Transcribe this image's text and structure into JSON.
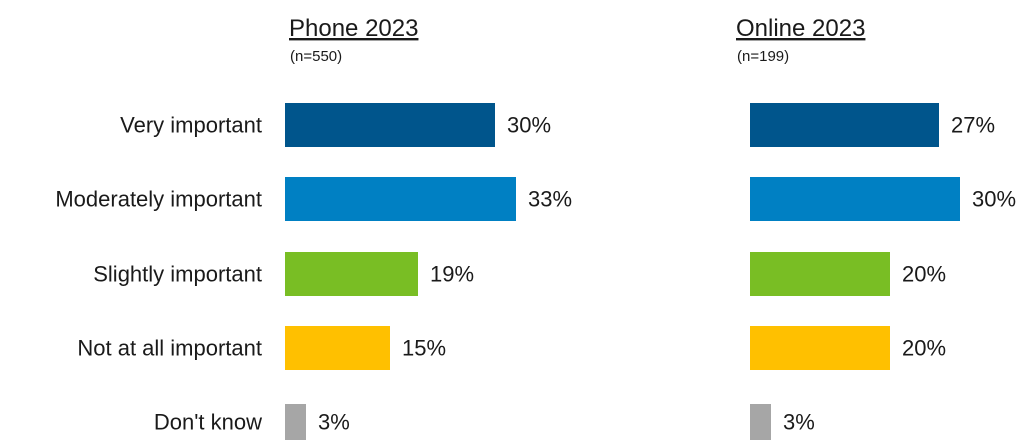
{
  "chart_data": {
    "type": "bar",
    "orientation": "horizontal",
    "categories": [
      "Very important",
      "Moderately important",
      "Slightly important",
      "Not at all important",
      "Don't know"
    ],
    "colors": [
      "#00558c",
      "#0080c3",
      "#79be24",
      "#ffc000",
      "#a6a6a6"
    ],
    "panels": [
      {
        "title": "Phone 2023",
        "subtitle": "(n=550)",
        "values": [
          30,
          33,
          19,
          15,
          3
        ],
        "labels": [
          "30%",
          "33%",
          "19%",
          "15%",
          "3%"
        ]
      },
      {
        "title": "Online 2023",
        "subtitle": "(n=199)",
        "values": [
          27,
          30,
          20,
          20,
          3
        ],
        "labels": [
          "27%",
          "30%",
          "20%",
          "20%",
          "3%"
        ]
      }
    ],
    "xlabel": "",
    "ylabel": "",
    "grid": false,
    "legend": "none"
  }
}
